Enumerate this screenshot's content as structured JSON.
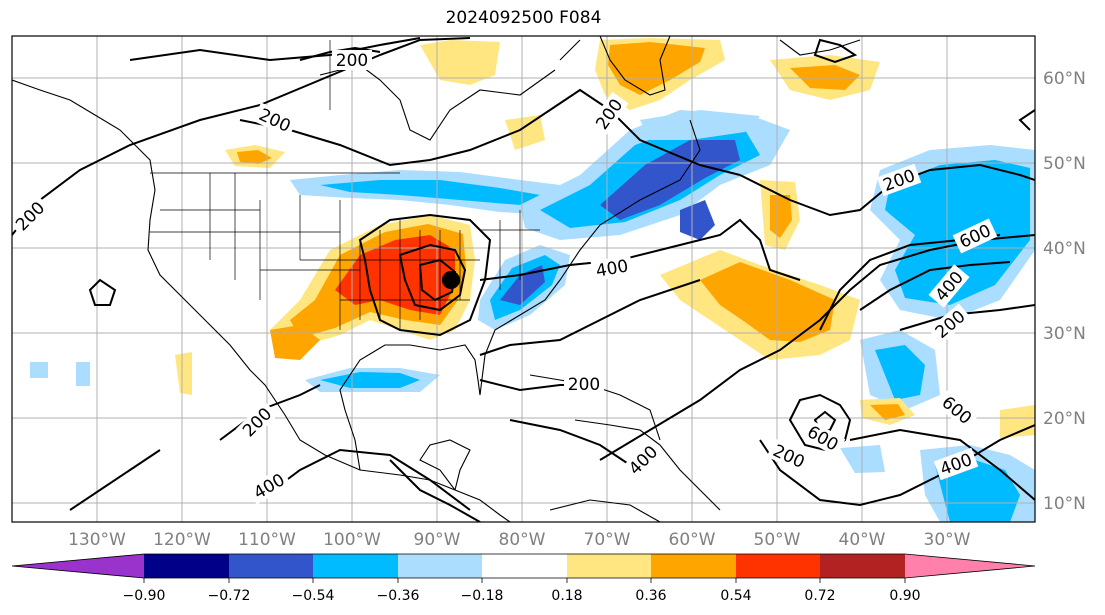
{
  "title": "2024092500 F084",
  "longitude_labels": [
    "130°W",
    "120°W",
    "110°W",
    "100°W",
    "90°W",
    "80°W",
    "70°W",
    "60°W",
    "50°W",
    "40°W",
    "30°W"
  ],
  "latitude_labels": [
    "60°N",
    "50°N",
    "40°N",
    "30°N",
    "20°N",
    "10°N"
  ],
  "contour_labels": [
    "200",
    "200",
    "200",
    "200",
    "200",
    "200",
    "200",
    "200",
    "200",
    "200",
    "200",
    "400",
    "400",
    "400",
    "400",
    "400",
    "600",
    "600",
    "600"
  ],
  "colorbar": {
    "tick_labels": [
      "−0.90",
      "−0.72",
      "−0.54",
      "−0.36",
      "−0.18",
      "0.18",
      "0.36",
      "0.54",
      "0.72",
      "0.90"
    ],
    "colors": [
      "#9933cc",
      "#000088",
      "#3355cc",
      "#00bbff",
      "#aaddff",
      "#ffffff",
      "#ffe680",
      "#ffa500",
      "#ff3300",
      "#b22222",
      "#ff80aa"
    ]
  },
  "colors": {
    "frame": "#000000",
    "grid": "#b0b0b0",
    "contour": "#000000",
    "marker": "#000000"
  }
}
